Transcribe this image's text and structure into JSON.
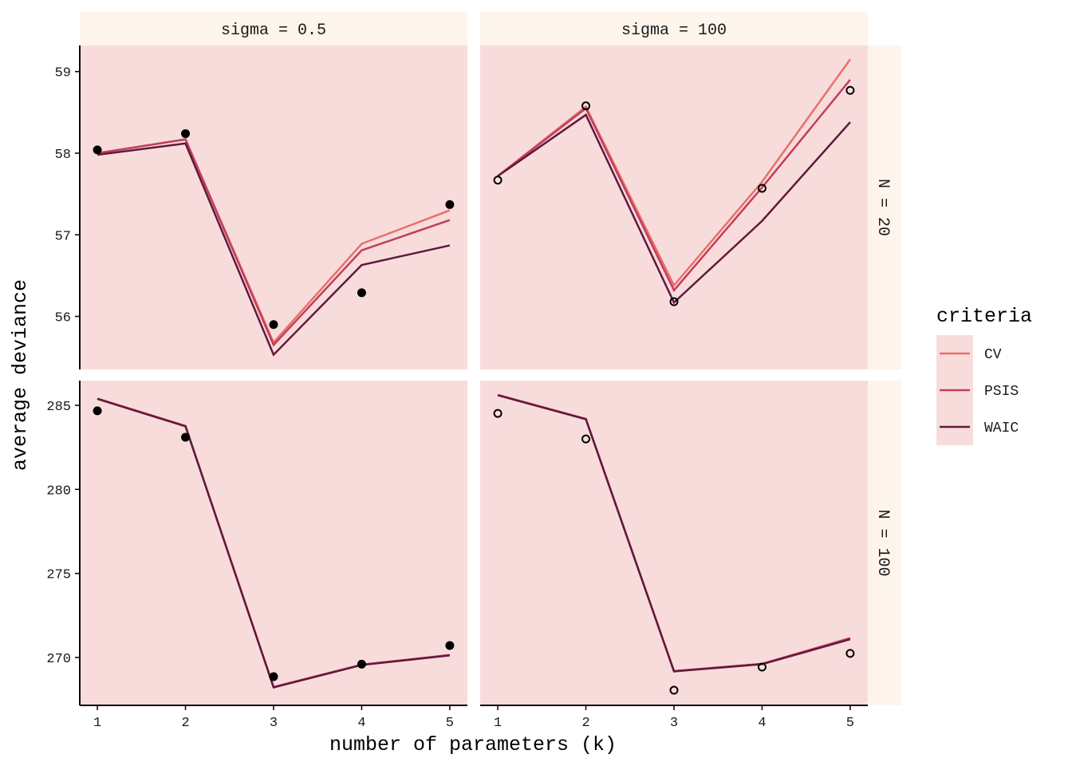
{
  "chart_data": {
    "type": "line",
    "xlabel": "number of parameters (k)",
    "ylabel": "average deviance",
    "x": [
      1,
      2,
      3,
      4,
      5
    ],
    "x_ticks": [
      "1",
      "2",
      "3",
      "4",
      "5"
    ],
    "xlim": [
      0.8,
      5.2
    ],
    "legend": {
      "title": "criteria",
      "placement": "right",
      "entries": [
        "CV",
        "PSIS",
        "WAIC"
      ]
    },
    "colors": {
      "CV": "#e8706a",
      "PSIS": "#c33d5c",
      "WAIC": "#5f1a3e",
      "panel_bg": "#f8dcdc",
      "strip_bg": "#fdf5ec",
      "points": "#000000"
    },
    "rows": [
      {
        "label": "N = 20",
        "ylim": [
          55.35,
          59.32
        ],
        "y_ticks": [
          "56",
          "57",
          "58",
          "59"
        ],
        "y_tick_values": [
          56,
          57,
          58,
          59
        ]
      },
      {
        "label": "N = 100",
        "ylim": [
          267.15,
          286.47
        ],
        "y_ticks": [
          "270",
          "275",
          "280",
          "285"
        ],
        "y_tick_values": [
          270,
          275,
          280,
          285
        ]
      }
    ],
    "columns": [
      {
        "label": "sigma = 0.5",
        "point_style": "filled"
      },
      {
        "label": "sigma = 100",
        "point_style": "open"
      }
    ],
    "panels": [
      {
        "row": 0,
        "col": 0,
        "points": [
          58.04,
          58.24,
          55.9,
          56.29,
          57.37
        ],
        "series": [
          {
            "name": "CV",
            "values": [
              58.0,
              58.17,
              55.68,
              56.89,
              57.3
            ]
          },
          {
            "name": "PSIS",
            "values": [
              58.0,
              58.17,
              55.65,
              56.81,
              57.18
            ]
          },
          {
            "name": "WAIC",
            "values": [
              57.98,
              58.12,
              55.53,
              56.63,
              56.87
            ]
          }
        ]
      },
      {
        "row": 0,
        "col": 1,
        "points": [
          57.67,
          58.58,
          56.18,
          57.57,
          58.77
        ],
        "series": [
          {
            "name": "CV",
            "values": [
              57.72,
              58.57,
              56.38,
              57.65,
              59.15
            ]
          },
          {
            "name": "PSIS",
            "values": [
              57.72,
              58.55,
              56.32,
              57.58,
              58.9
            ]
          },
          {
            "name": "WAIC",
            "values": [
              57.72,
              58.47,
              56.17,
              57.17,
              58.38
            ]
          }
        ]
      },
      {
        "row": 1,
        "col": 0,
        "points": [
          284.67,
          283.1,
          268.86,
          269.6,
          270.71
        ],
        "series": [
          {
            "name": "CV",
            "values": [
              285.4,
              283.77,
              268.24,
              269.57,
              270.15
            ]
          },
          {
            "name": "PSIS",
            "values": [
              285.4,
              283.77,
              268.24,
              269.57,
              270.14
            ]
          },
          {
            "name": "WAIC",
            "values": [
              285.38,
              283.75,
              268.22,
              269.55,
              270.12
            ]
          }
        ]
      },
      {
        "row": 1,
        "col": 1,
        "points": [
          284.52,
          283.0,
          268.05,
          269.43,
          270.24
        ],
        "series": [
          {
            "name": "CV",
            "values": [
              285.62,
              284.19,
              269.19,
              269.62,
              271.16
            ]
          },
          {
            "name": "PSIS",
            "values": [
              285.62,
              284.19,
              269.19,
              269.62,
              271.14
            ]
          },
          {
            "name": "WAIC",
            "values": [
              285.6,
              284.17,
              269.17,
              269.6,
              271.08
            ]
          }
        ]
      }
    ]
  }
}
